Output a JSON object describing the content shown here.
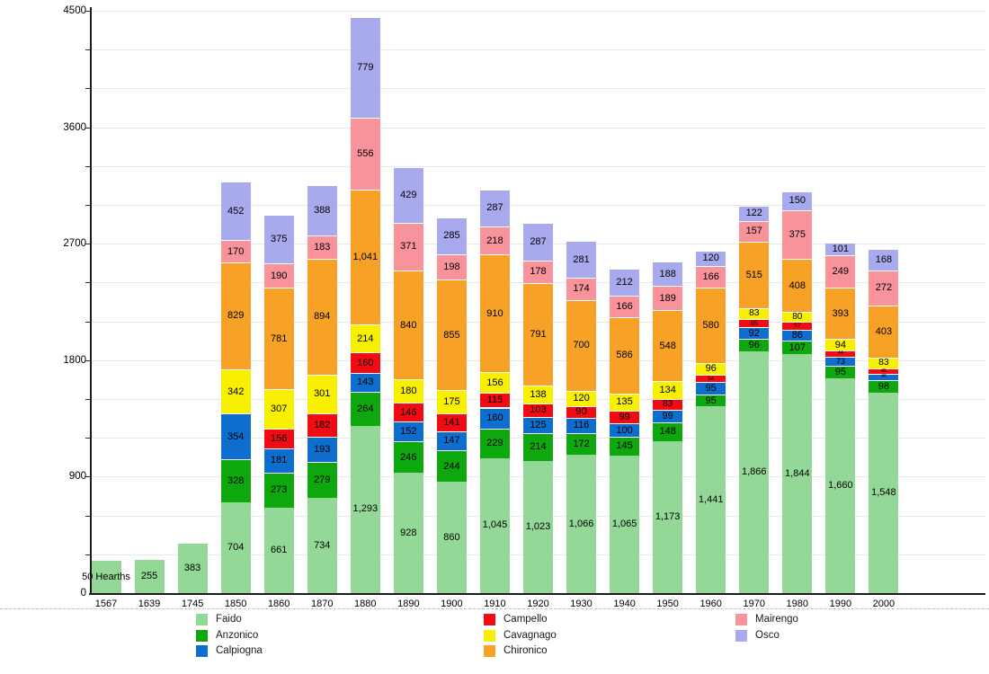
{
  "chart_data": {
    "type": "bar",
    "stacked": true,
    "title": "",
    "xlabel": "",
    "ylabel": "",
    "ylim": [
      0,
      4500
    ],
    "ytick_values": [
      0,
      900,
      1800,
      2700,
      3600,
      4500
    ],
    "ytick_labels": [
      "0",
      "900",
      "1800",
      "2700",
      "3600",
      "4500"
    ],
    "grid_step": 300,
    "grid": true,
    "legend_position": "bottom",
    "x_years": [
      "1567",
      "1639",
      "1745",
      "1850",
      "1860",
      "1870",
      "1880",
      "1890",
      "1900",
      "1910",
      "1920",
      "1930",
      "1940",
      "1950",
      "1960",
      "1970",
      "1980",
      "1990",
      "2000"
    ],
    "series": [
      {
        "name": "Faido",
        "color": "#93d897",
        "values": [
          250,
          255,
          383,
          704,
          661,
          734,
          1293,
          928,
          860,
          1045,
          1023,
          1066,
          1065,
          1173,
          1441,
          1866,
          1844,
          1660,
          1548
        ]
      },
      {
        "name": "Anzonico",
        "color": "#0ea80e",
        "values": [
          null,
          null,
          null,
          328,
          273,
          279,
          264,
          246,
          244,
          229,
          214,
          172,
          145,
          148,
          95,
          96,
          107,
          95,
          98
        ]
      },
      {
        "name": "Calpiogna",
        "color": "#0e6ecd",
        "values": [
          null,
          null,
          null,
          354,
          181,
          193,
          143,
          152,
          147,
          160,
          125,
          116,
          100,
          99,
          95,
          92,
          86,
          73,
          46
        ]
      },
      {
        "name": "Campello",
        "color": "#f30b14",
        "values": [
          null,
          null,
          null,
          null,
          156,
          182,
          160,
          146,
          141,
          115,
          103,
          90,
          99,
          83,
          54,
          65,
          57,
          44,
          45
        ]
      },
      {
        "name": "Cavagnago",
        "color": "#f8f000",
        "values": [
          null,
          null,
          null,
          342,
          307,
          301,
          214,
          180,
          175,
          156,
          138,
          120,
          135,
          134,
          96,
          83,
          80,
          94,
          83
        ]
      },
      {
        "name": "Chironico",
        "color": "#f7a226",
        "values": [
          null,
          null,
          null,
          829,
          781,
          894,
          1041,
          840,
          855,
          910,
          791,
          700,
          586,
          548,
          580,
          515,
          408,
          393,
          403
        ]
      },
      {
        "name": "Mairengo",
        "color": "#f8929b",
        "values": [
          null,
          null,
          null,
          170,
          190,
          183,
          556,
          371,
          198,
          218,
          178,
          174,
          166,
          189,
          166,
          157,
          375,
          249,
          272
        ]
      },
      {
        "name": "Osco",
        "color": "#a9a9ee",
        "values": [
          null,
          null,
          null,
          452,
          375,
          388,
          779,
          429,
          285,
          287,
          287,
          281,
          212,
          188,
          120,
          122,
          150,
          101,
          168
        ]
      }
    ],
    "label_overrides": [
      {
        "series": "Faido",
        "year": "1567",
        "label": "50 Hearths"
      }
    ],
    "legend_columns": [
      [
        "Faido",
        "Anzonico",
        "Calpiogna"
      ],
      [
        "Campello",
        "Cavagnago",
        "Chironico"
      ],
      [
        "Mairengo",
        "Osco"
      ]
    ]
  },
  "colors": {
    "axis": "#1a1a1a",
    "grid": "#e8e8e8",
    "bar_label_text": "#000000",
    "legend_text": "#1a1a1a"
  }
}
